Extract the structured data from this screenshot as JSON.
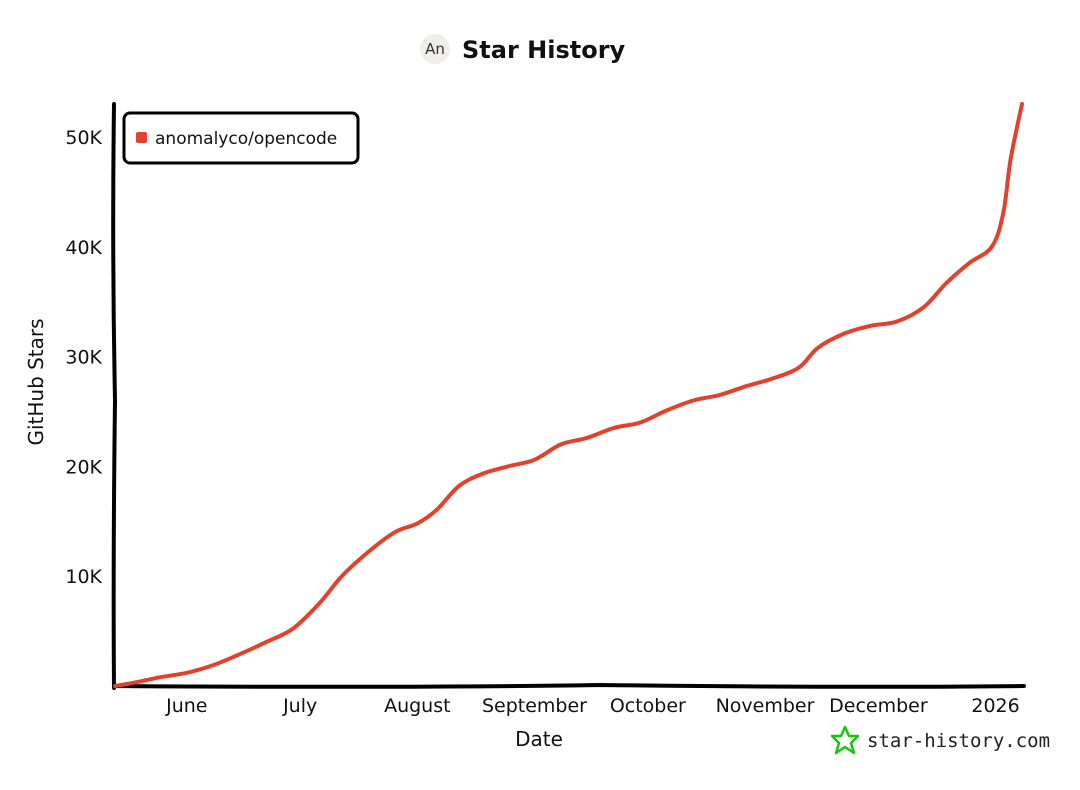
{
  "header": {
    "avatar_initials": "An",
    "title": "Star History"
  },
  "credit": {
    "text": "star-history.com",
    "icon": "star-outline-icon",
    "icon_color": "#16c60c"
  },
  "colors": {
    "series": "#e0422b",
    "axis": "#000000",
    "avatar_bg": "#efeeed"
  },
  "chart_data": {
    "type": "line",
    "title": "Star History",
    "xlabel": "Date",
    "ylabel": "GitHub Stars",
    "x_tick_labels": [
      "June",
      "July",
      "August",
      "September",
      "October",
      "November",
      "December",
      "2026"
    ],
    "y_tick_labels": [
      "10K",
      "20K",
      "30K",
      "40K",
      "50K"
    ],
    "x_ticks": [
      "2025-06-01",
      "2025-07-01",
      "2025-08-01",
      "2025-09-01",
      "2025-10-01",
      "2025-11-01",
      "2025-12-01",
      "2026-01-01"
    ],
    "y_ticks": [
      10000,
      20000,
      30000,
      40000,
      50000
    ],
    "xlim": [
      "2025-05-13",
      "2026-01-08"
    ],
    "ylim": [
      0,
      53000
    ],
    "grid": false,
    "legend_position": "top-left",
    "series": [
      {
        "name": "anomalyco/opencode",
        "color": "#e0422b",
        "points": [
          {
            "x": "2025-05-13",
            "y": 0
          },
          {
            "x": "2025-05-18",
            "y": 300
          },
          {
            "x": "2025-05-25",
            "y": 800
          },
          {
            "x": "2025-06-01",
            "y": 1200
          },
          {
            "x": "2025-06-08",
            "y": 1900
          },
          {
            "x": "2025-06-15",
            "y": 2900
          },
          {
            "x": "2025-06-22",
            "y": 4000
          },
          {
            "x": "2025-06-29",
            "y": 5200
          },
          {
            "x": "2025-07-06",
            "y": 7500
          },
          {
            "x": "2025-07-12",
            "y": 10000
          },
          {
            "x": "2025-07-19",
            "y": 12200
          },
          {
            "x": "2025-07-26",
            "y": 14000
          },
          {
            "x": "2025-08-01",
            "y": 14800
          },
          {
            "x": "2025-08-06",
            "y": 16000
          },
          {
            "x": "2025-08-12",
            "y": 18200
          },
          {
            "x": "2025-08-18",
            "y": 19300
          },
          {
            "x": "2025-08-25",
            "y": 20000
          },
          {
            "x": "2025-09-01",
            "y": 20600
          },
          {
            "x": "2025-09-08",
            "y": 22000
          },
          {
            "x": "2025-09-15",
            "y": 22600
          },
          {
            "x": "2025-09-22",
            "y": 23500
          },
          {
            "x": "2025-09-29",
            "y": 24000
          },
          {
            "x": "2025-10-06",
            "y": 25100
          },
          {
            "x": "2025-10-13",
            "y": 26000
          },
          {
            "x": "2025-10-20",
            "y": 26500
          },
          {
            "x": "2025-10-27",
            "y": 27300
          },
          {
            "x": "2025-11-03",
            "y": 28000
          },
          {
            "x": "2025-11-10",
            "y": 29000
          },
          {
            "x": "2025-11-15",
            "y": 30800
          },
          {
            "x": "2025-11-22",
            "y": 32100
          },
          {
            "x": "2025-11-29",
            "y": 32800
          },
          {
            "x": "2025-12-06",
            "y": 33200
          },
          {
            "x": "2025-12-13",
            "y": 34500
          },
          {
            "x": "2025-12-19",
            "y": 36700
          },
          {
            "x": "2025-12-25",
            "y": 38500
          },
          {
            "x": "2025-12-31",
            "y": 40000
          },
          {
            "x": "2026-01-03",
            "y": 43000
          },
          {
            "x": "2026-01-05",
            "y": 48000
          },
          {
            "x": "2026-01-08",
            "y": 53000
          }
        ]
      }
    ]
  }
}
